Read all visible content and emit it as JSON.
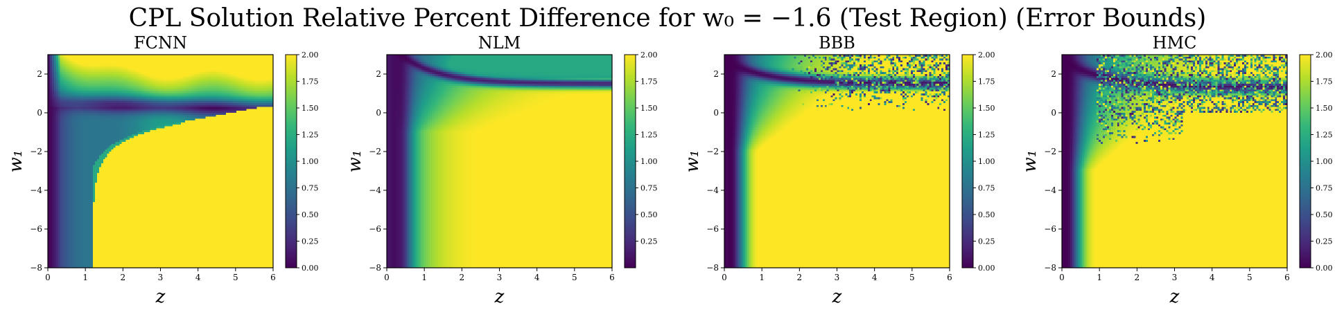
{
  "figure": {
    "title": "CPL Solution Relative Percent Difference for w₀ = −1.6 (Test Region) (Error Bounds)"
  },
  "colors": {
    "viridis": [
      "#440154",
      "#482878",
      "#3e4989",
      "#31688e",
      "#26828e",
      "#1f9e89",
      "#35b779",
      "#6ece58",
      "#b5de2b",
      "#fde725"
    ],
    "axis": "#000000",
    "background": "#ffffff"
  },
  "chart_data": [
    {
      "type": "heatmap",
      "title": "FCNN",
      "xlabel": "z",
      "ylabel": "w₁",
      "xlim": [
        0,
        6
      ],
      "ylim": [
        -8,
        3
      ],
      "x_ticks": [
        "0",
        "1",
        "2",
        "3",
        "4",
        "5",
        "6"
      ],
      "y_ticks": [
        "−8",
        "−6",
        "−4",
        "−2",
        "0",
        "2"
      ],
      "colorbar": {
        "min": 0.0,
        "max": 2.0,
        "ticks": [
          "0.00",
          "0.25",
          "0.50",
          "0.75",
          "1.00",
          "1.25",
          "1.50",
          "1.75",
          "2.00"
        ]
      }
    },
    {
      "type": "heatmap",
      "title": "NLM",
      "xlabel": "z",
      "ylabel": "w₁",
      "xlim": [
        0,
        6
      ],
      "ylim": [
        -8,
        3
      ],
      "x_ticks": [
        "0",
        "1",
        "2",
        "3",
        "4",
        "5",
        "6"
      ],
      "y_ticks": [
        "−8",
        "−6",
        "−4",
        "−2",
        "0",
        "2"
      ],
      "colorbar": {
        "min": 0.0,
        "max": 2.0,
        "ticks": [
          "0.25",
          "0.50",
          "0.75",
          "1.00",
          "1.25",
          "1.50",
          "1.75",
          "2.00"
        ]
      }
    },
    {
      "type": "heatmap",
      "title": "BBB",
      "xlabel": "z",
      "ylabel": "w₁",
      "xlim": [
        0,
        6
      ],
      "ylim": [
        -8,
        3
      ],
      "x_ticks": [
        "0",
        "1",
        "2",
        "3",
        "4",
        "5",
        "6"
      ],
      "y_ticks": [
        "−8",
        "−6",
        "−4",
        "−2",
        "0",
        "2"
      ],
      "colorbar": {
        "min": 0.0,
        "max": 2.0,
        "ticks": [
          "0.00",
          "0.25",
          "0.50",
          "0.75",
          "1.00",
          "1.25",
          "1.50",
          "1.75",
          "2.00"
        ]
      }
    },
    {
      "type": "heatmap",
      "title": "HMC",
      "xlabel": "z",
      "ylabel": "w₁",
      "xlim": [
        0,
        6
      ],
      "ylim": [
        -8,
        3
      ],
      "x_ticks": [
        "0",
        "1",
        "2",
        "3",
        "4",
        "5",
        "6"
      ],
      "y_ticks": [
        "−8",
        "−6",
        "−4",
        "−2",
        "0",
        "2"
      ],
      "colorbar": {
        "min": 0.0,
        "max": 2.0,
        "ticks": [
          "0.00",
          "0.25",
          "0.50",
          "0.75",
          "1.00",
          "1.25",
          "1.50",
          "1.75",
          "2.00"
        ]
      }
    }
  ]
}
